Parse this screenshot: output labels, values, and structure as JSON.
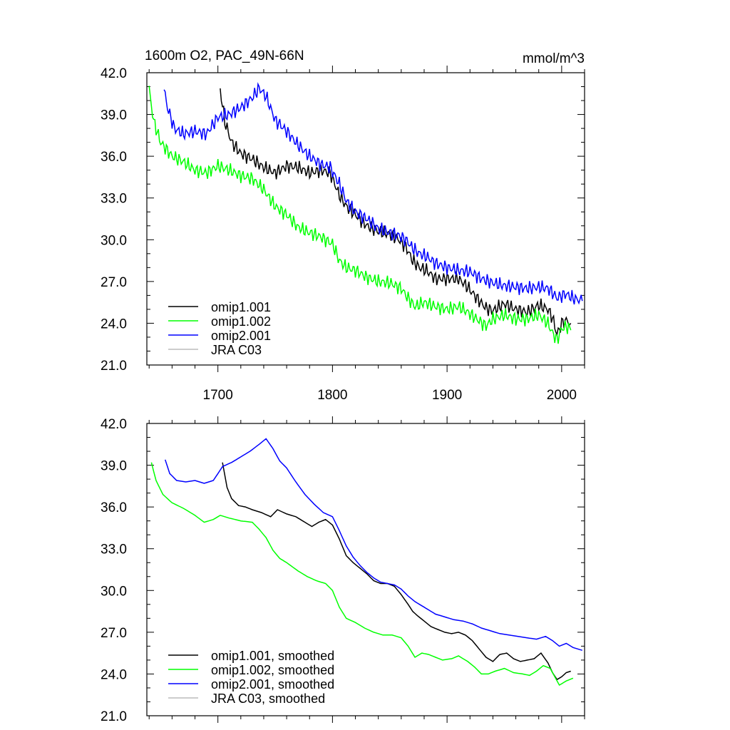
{
  "chart_data": [
    {
      "type": "line",
      "title": "1600m O2, PAC_49N-66N",
      "units": "mmol/m^3",
      "xlim": [
        1638,
        2020
      ],
      "ylim": [
        21.0,
        42.0
      ],
      "xticks": [
        1700,
        1800,
        1900,
        2000
      ],
      "yticks": [
        "21.0",
        "24.0",
        "27.0",
        "30.0",
        "33.0",
        "36.0",
        "39.0",
        "42.0"
      ],
      "legend_position": "bottom-left",
      "series": [
        {
          "name": "omip1.001",
          "color": "#000000",
          "x": [
            1702,
            1706,
            1712,
            1720,
            1730,
            1740,
            1750,
            1760,
            1770,
            1780,
            1790,
            1798,
            1806,
            1812,
            1820,
            1830,
            1840,
            1850,
            1858,
            1864,
            1870,
            1876,
            1882,
            1890,
            1900,
            1910,
            1918,
            1926,
            1934,
            1940,
            1950,
            1960,
            1970,
            1980,
            1988,
            1992,
            1996,
            2000,
            2004,
            2008
          ],
          "values": [
            40.8,
            38.5,
            37.0,
            36.2,
            35.8,
            35.2,
            34.8,
            35.3,
            35.2,
            34.8,
            35.0,
            34.8,
            33.2,
            32.4,
            31.8,
            31.0,
            30.6,
            30.4,
            30.0,
            29.5,
            28.5,
            28.0,
            27.8,
            27.2,
            27.2,
            27.2,
            26.6,
            25.8,
            25.1,
            24.9,
            25.4,
            25.0,
            24.8,
            25.3,
            25.0,
            24.4,
            23.2,
            24.0,
            24.2,
            24.0
          ]
        },
        {
          "name": "omip1.002",
          "color": "#00ff00",
          "x": [
            1640,
            1644,
            1650,
            1660,
            1670,
            1680,
            1690,
            1700,
            1710,
            1720,
            1730,
            1740,
            1750,
            1760,
            1770,
            1780,
            1790,
            1800,
            1806,
            1812,
            1820,
            1830,
            1840,
            1850,
            1860,
            1866,
            1872,
            1880,
            1890,
            1900,
            1910,
            1918,
            1926,
            1934,
            1940,
            1950,
            1960,
            1970,
            1980,
            1988,
            1992,
            1996,
            2000,
            2004,
            2008
          ],
          "values": [
            40.8,
            38.5,
            37.0,
            36.0,
            35.6,
            35.0,
            34.8,
            35.3,
            35.0,
            34.6,
            34.4,
            33.6,
            32.4,
            31.8,
            30.9,
            30.5,
            30.2,
            29.7,
            28.5,
            28.0,
            27.8,
            27.3,
            27.0,
            26.9,
            26.5,
            25.8,
            25.2,
            25.5,
            25.2,
            25.0,
            25.2,
            24.8,
            24.3,
            23.8,
            24.3,
            24.6,
            24.3,
            24.3,
            24.6,
            24.0,
            23.3,
            22.8,
            23.6,
            23.8,
            23.5
          ]
        },
        {
          "name": "omip2.001",
          "color": "#0000ff",
          "x": [
            1653,
            1656,
            1662,
            1670,
            1680,
            1690,
            1700,
            1710,
            1720,
            1730,
            1736,
            1742,
            1750,
            1760,
            1770,
            1780,
            1790,
            1798,
            1806,
            1812,
            1820,
            1830,
            1840,
            1850,
            1858,
            1864,
            1870,
            1876,
            1882,
            1890,
            1900,
            1910,
            1920,
            1930,
            1940,
            1950,
            1960,
            1970,
            1980,
            1988,
            1992,
            1996,
            2000,
            2004,
            2010,
            2018
          ],
          "values": [
            40.8,
            39.5,
            38.0,
            37.6,
            37.8,
            37.6,
            38.8,
            39.0,
            39.5,
            40.2,
            40.9,
            40.3,
            38.6,
            37.8,
            36.8,
            36.0,
            35.4,
            35.2,
            34.0,
            32.8,
            32.0,
            31.5,
            30.8,
            30.5,
            30.3,
            30.0,
            29.4,
            29.0,
            28.8,
            28.3,
            28.0,
            27.8,
            27.7,
            27.2,
            26.9,
            26.7,
            26.6,
            26.5,
            26.6,
            26.5,
            26.2,
            25.8,
            26.0,
            26.1,
            25.8,
            25.6
          ]
        },
        {
          "name": "JRA C03",
          "color": "#bbbbbb",
          "x": [],
          "values": []
        }
      ]
    },
    {
      "type": "line",
      "title": "",
      "units": "",
      "xlim": [
        1638,
        2020
      ],
      "ylim": [
        21.0,
        42.0
      ],
      "xticks": [
        1700,
        1800,
        1900,
        2000
      ],
      "yticks": [
        "21.0",
        "24.0",
        "27.0",
        "30.0",
        "33.0",
        "36.0",
        "39.0",
        "42.0"
      ],
      "legend_position": "bottom-left",
      "series": [
        {
          "name": "omip1.001, smoothed",
          "color": "#000000",
          "x": [
            1704,
            1708,
            1712,
            1718,
            1724,
            1730,
            1738,
            1746,
            1752,
            1760,
            1768,
            1776,
            1782,
            1788,
            1794,
            1800,
            1806,
            1812,
            1818,
            1824,
            1830,
            1836,
            1842,
            1848,
            1854,
            1860,
            1866,
            1870,
            1874,
            1880,
            1886,
            1892,
            1898,
            1904,
            1910,
            1916,
            1922,
            1928,
            1934,
            1940,
            1946,
            1952,
            1958,
            1964,
            1970,
            1976,
            1982,
            1988,
            1992,
            1996,
            2000,
            2004,
            2008
          ],
          "values": [
            39.2,
            37.4,
            36.6,
            36.1,
            36.0,
            35.8,
            35.6,
            35.3,
            35.8,
            35.5,
            35.3,
            34.9,
            34.6,
            34.9,
            35.1,
            34.7,
            33.7,
            32.5,
            32.0,
            31.6,
            31.2,
            30.7,
            30.5,
            30.5,
            30.3,
            29.7,
            29.0,
            28.5,
            28.2,
            27.8,
            27.4,
            27.2,
            27.0,
            26.9,
            27.0,
            26.8,
            26.4,
            25.8,
            25.2,
            24.9,
            25.4,
            25.5,
            25.1,
            24.9,
            25.0,
            25.1,
            25.5,
            24.8,
            24.1,
            23.6,
            23.8,
            24.1,
            24.2
          ]
        },
        {
          "name": "omip1.002, smoothed",
          "color": "#00ff00",
          "x": [
            1642,
            1646,
            1652,
            1660,
            1670,
            1680,
            1688,
            1696,
            1702,
            1710,
            1720,
            1730,
            1736,
            1742,
            1748,
            1754,
            1760,
            1770,
            1778,
            1786,
            1794,
            1800,
            1806,
            1812,
            1820,
            1828,
            1836,
            1844,
            1852,
            1860,
            1866,
            1872,
            1878,
            1884,
            1890,
            1896,
            1904,
            1910,
            1918,
            1924,
            1930,
            1936,
            1942,
            1950,
            1958,
            1966,
            1972,
            1978,
            1984,
            1990,
            1994,
            1998,
            2004,
            2010
          ],
          "values": [
            39.2,
            37.9,
            36.9,
            36.3,
            35.9,
            35.4,
            34.9,
            35.1,
            35.4,
            35.2,
            35.0,
            34.9,
            34.4,
            33.8,
            32.9,
            32.3,
            32.0,
            31.4,
            31.0,
            30.7,
            30.5,
            30.0,
            28.8,
            28.0,
            27.7,
            27.3,
            27.0,
            26.8,
            26.8,
            26.6,
            26.0,
            25.2,
            25.5,
            25.4,
            25.2,
            25.0,
            25.1,
            25.3,
            24.9,
            24.5,
            24.0,
            24.0,
            24.2,
            24.4,
            24.1,
            24.0,
            23.9,
            24.2,
            24.6,
            24.4,
            23.8,
            23.2,
            23.5,
            23.7
          ]
        },
        {
          "name": "omip2.001, smoothed",
          "color": "#0000ff",
          "x": [
            1654,
            1658,
            1664,
            1672,
            1680,
            1688,
            1696,
            1704,
            1712,
            1720,
            1728,
            1736,
            1742,
            1748,
            1754,
            1760,
            1768,
            1776,
            1784,
            1792,
            1800,
            1806,
            1812,
            1818,
            1824,
            1830,
            1836,
            1842,
            1848,
            1854,
            1860,
            1866,
            1872,
            1878,
            1884,
            1890,
            1898,
            1906,
            1914,
            1922,
            1930,
            1938,
            1946,
            1954,
            1962,
            1970,
            1978,
            1986,
            1992,
            1998,
            2004,
            2010,
            2018
          ],
          "values": [
            39.4,
            38.4,
            37.9,
            37.8,
            37.9,
            37.7,
            37.9,
            38.9,
            39.2,
            39.6,
            40.0,
            40.5,
            40.9,
            40.2,
            39.3,
            38.8,
            37.8,
            36.9,
            36.2,
            35.6,
            35.3,
            34.3,
            33.2,
            32.4,
            31.8,
            31.3,
            30.9,
            30.6,
            30.5,
            30.4,
            30.1,
            29.6,
            29.2,
            28.9,
            28.6,
            28.3,
            28.1,
            27.9,
            27.8,
            27.6,
            27.3,
            27.1,
            26.9,
            26.8,
            26.7,
            26.6,
            26.5,
            26.7,
            26.4,
            26.0,
            26.2,
            25.9,
            25.7
          ]
        },
        {
          "name": "JRA C03, smoothed",
          "color": "#bbbbbb",
          "x": [],
          "values": []
        }
      ]
    }
  ]
}
